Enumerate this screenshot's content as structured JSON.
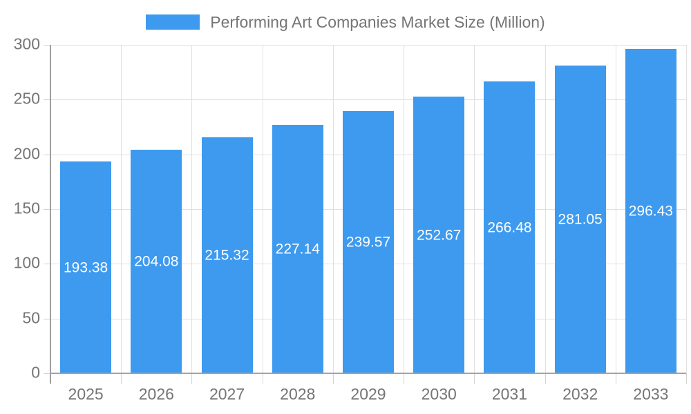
{
  "chart_data": {
    "type": "bar",
    "title": "Performing Art Companies Market Size (Million)",
    "categories": [
      "2025",
      "2026",
      "2027",
      "2028",
      "2029",
      "2030",
      "2031",
      "2032",
      "2033"
    ],
    "values": [
      193.38,
      204.08,
      215.32,
      227.14,
      239.57,
      252.67,
      266.48,
      281.05,
      296.43
    ],
    "series_name": "Performing Art Companies Market Size (Million)",
    "xlabel": "",
    "ylabel": "",
    "ylim": [
      0,
      300
    ],
    "yticks": [
      0,
      50,
      100,
      150,
      200,
      250,
      300
    ],
    "grid": true,
    "legend_position": "top-center",
    "value_labels": "inside-middle-white",
    "colors": {
      "bar": "#3D9AEF",
      "axis_text": "#757575",
      "value_label": "#FFFFFF",
      "gridline": "#E0E0E0",
      "axis_line": "#A3A3A3",
      "background": "#FFFFFF"
    }
  }
}
